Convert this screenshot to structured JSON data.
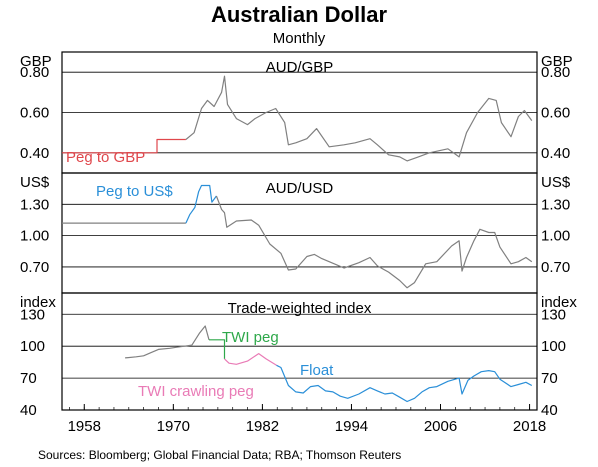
{
  "chart_data": {
    "type": "line",
    "title": "Australian Dollar",
    "subtitle": "Monthly",
    "source": "Sources:   Bloomberg; Global Financial Data; RBA; Thomson Reuters",
    "x_ticks": [
      "1958",
      "1970",
      "1982",
      "1994",
      "2006",
      "2018"
    ],
    "xlim": [
      1955,
      2019
    ],
    "colors": {
      "grey": "#808080",
      "red": "#e0474c",
      "blue": "#2a8fd8",
      "green": "#2ea84a",
      "pink": "#e97bb6",
      "navy": "#1b2a6b"
    },
    "panels": [
      {
        "name": "AUD/GBP",
        "unit": "GBP",
        "ylim": [
          0.3,
          0.9
        ],
        "yticks": [
          "0.40",
          "0.60",
          "0.80"
        ],
        "ytick_values": [
          0.4,
          0.6,
          0.8
        ],
        "series": [
          {
            "label": "Peg to GBP",
            "color": "red",
            "points": [
              [
                1955,
                0.4
              ],
              [
                1967.8,
                0.4
              ],
              [
                1967.8,
                0.466
              ],
              [
                1971.7,
                0.466
              ]
            ]
          },
          {
            "color": "grey",
            "points": [
              [
                1971.7,
                0.466
              ],
              [
                1972.8,
                0.5
              ],
              [
                1973.8,
                0.62
              ],
              [
                1974.6,
                0.66
              ],
              [
                1975.5,
                0.63
              ],
              [
                1976.5,
                0.7
              ],
              [
                1976.9,
                0.78
              ],
              [
                1977.3,
                0.64
              ],
              [
                1978.5,
                0.57
              ],
              [
                1980,
                0.54
              ],
              [
                1981,
                0.57
              ],
              [
                1982.5,
                0.6
              ],
              [
                1983.8,
                0.62
              ],
              [
                1985,
                0.55
              ],
              [
                1985.5,
                0.44
              ],
              [
                1986.5,
                0.45
              ],
              [
                1988,
                0.47
              ],
              [
                1989.3,
                0.52
              ],
              [
                1991,
                0.43
              ],
              [
                1993,
                0.44
              ],
              [
                1994.5,
                0.45
              ],
              [
                1996.5,
                0.47
              ],
              [
                1997.5,
                0.44
              ],
              [
                1999,
                0.39
              ],
              [
                2000.5,
                0.38
              ],
              [
                2001.5,
                0.36
              ],
              [
                2003,
                0.38
              ],
              [
                2004.5,
                0.4
              ],
              [
                2007,
                0.42
              ],
              [
                2008.5,
                0.38
              ],
              [
                2009.5,
                0.5
              ],
              [
                2011,
                0.6
              ],
              [
                2012.5,
                0.67
              ],
              [
                2013.5,
                0.66
              ],
              [
                2014.2,
                0.55
              ],
              [
                2015.5,
                0.48
              ],
              [
                2016.5,
                0.58
              ],
              [
                2017.3,
                0.61
              ],
              [
                2018.3,
                0.56
              ]
            ]
          }
        ]
      },
      {
        "name": "AUD/USD",
        "unit": "US$",
        "ylim": [
          0.45,
          1.6
        ],
        "yticks": [
          "0.70",
          "1.00",
          "1.30"
        ],
        "ytick_values": [
          0.7,
          1.0,
          1.3
        ],
        "series": [
          {
            "color": "grey",
            "points": [
              [
                1955,
                1.12
              ],
              [
                1958,
                1.12
              ],
              [
                1962,
                1.12
              ],
              [
                1966,
                1.12
              ],
              [
                1970,
                1.12
              ],
              [
                1971.7,
                1.12
              ]
            ]
          },
          {
            "label": "Peg to US$",
            "color": "blue",
            "points": [
              [
                1971.7,
                1.12
              ],
              [
                1972.2,
                1.2
              ],
              [
                1972.9,
                1.27
              ],
              [
                1973.4,
                1.42
              ],
              [
                1973.8,
                1.48
              ],
              [
                1974.9,
                1.48
              ],
              [
                1975.2,
                1.32
              ],
              [
                1975.8,
                1.38
              ]
            ]
          },
          {
            "color": "grey",
            "points": [
              [
                1975.8,
                1.38
              ],
              [
                1976.5,
                1.25
              ],
              [
                1976.9,
                1.22
              ],
              [
                1977.2,
                1.08
              ],
              [
                1978.5,
                1.14
              ],
              [
                1980.5,
                1.15
              ],
              [
                1981.5,
                1.1
              ],
              [
                1983,
                0.92
              ],
              [
                1984.5,
                0.83
              ],
              [
                1985.5,
                0.67
              ],
              [
                1986.5,
                0.68
              ],
              [
                1988,
                0.8
              ],
              [
                1989,
                0.82
              ],
              [
                1990,
                0.78
              ],
              [
                1992,
                0.72
              ],
              [
                1993,
                0.69
              ],
              [
                1995,
                0.74
              ],
              [
                1996.5,
                0.79
              ],
              [
                1997.5,
                0.71
              ],
              [
                1999,
                0.65
              ],
              [
                2000.5,
                0.57
              ],
              [
                2001.5,
                0.5
              ],
              [
                2002.5,
                0.55
              ],
              [
                2004,
                0.73
              ],
              [
                2005.5,
                0.75
              ],
              [
                2007.5,
                0.9
              ],
              [
                2008.5,
                0.95
              ],
              [
                2008.9,
                0.66
              ],
              [
                2009.5,
                0.79
              ],
              [
                2010.5,
                0.95
              ],
              [
                2011.3,
                1.06
              ],
              [
                2012.5,
                1.03
              ],
              [
                2013.3,
                1.03
              ],
              [
                2014,
                0.89
              ],
              [
                2015.5,
                0.73
              ],
              [
                2016.5,
                0.75
              ],
              [
                2017.5,
                0.79
              ],
              [
                2018.3,
                0.75
              ]
            ]
          }
        ]
      },
      {
        "name": "Trade-weighted index",
        "unit": "index",
        "ylim": [
          40,
          150
        ],
        "yticks": [
          "40",
          "70",
          "100",
          "130"
        ],
        "ytick_values": [
          40,
          70,
          100,
          130
        ],
        "series": [
          {
            "color": "grey",
            "points": [
              [
                1963.5,
                89
              ],
              [
                1965,
                90
              ],
              [
                1966,
                91
              ],
              [
                1967,
                94
              ],
              [
                1968,
                97
              ],
              [
                1969.5,
                98
              ],
              [
                1970.5,
                99
              ],
              [
                1971.5,
                100
              ],
              [
                1972.5,
                101
              ],
              [
                1973.5,
                112
              ],
              [
                1974.3,
                119
              ],
              [
                1974.8,
                106
              ]
            ]
          },
          {
            "label": "TWI peg",
            "color": "green",
            "points": [
              [
                1974.8,
                106
              ],
              [
                1976.9,
                106
              ],
              [
                1976.9,
                88
              ]
            ]
          },
          {
            "label": "TWI crawling peg",
            "color": "pink",
            "points": [
              [
                1976.9,
                88
              ],
              [
                1977.5,
                84
              ],
              [
                1978.5,
                83
              ],
              [
                1980,
                86
              ],
              [
                1981.5,
                93
              ],
              [
                1982.5,
                88
              ],
              [
                1983.9,
                82
              ]
            ]
          },
          {
            "label": "Float",
            "color": "blue",
            "points": [
              [
                1983.9,
                82
              ],
              [
                1984.5,
                80
              ],
              [
                1985.5,
                63
              ],
              [
                1986.5,
                57
              ],
              [
                1987.5,
                56
              ],
              [
                1988.5,
                62
              ],
              [
                1989.5,
                63
              ],
              [
                1990.5,
                58
              ],
              [
                1991.5,
                57
              ],
              [
                1992.5,
                53
              ],
              [
                1993.5,
                51
              ],
              [
                1995,
                55
              ],
              [
                1996.5,
                61
              ],
              [
                1997.5,
                58
              ],
              [
                1998.5,
                55
              ],
              [
                1999.5,
                56
              ],
              [
                2000.5,
                52
              ],
              [
                2001.5,
                48
              ],
              [
                2002.5,
                51
              ],
              [
                2003.5,
                57
              ],
              [
                2004.5,
                61
              ],
              [
                2005.5,
                62
              ],
              [
                2007,
                67
              ],
              [
                2008.5,
                70
              ],
              [
                2008.9,
                55
              ],
              [
                2009.7,
                68
              ],
              [
                2010.5,
                72
              ],
              [
                2011.5,
                76
              ],
              [
                2012.5,
                77
              ],
              [
                2013.3,
                76
              ],
              [
                2014,
                69
              ],
              [
                2015.5,
                62
              ],
              [
                2016.5,
                64
              ],
              [
                2017.5,
                66
              ],
              [
                2018.3,
                63
              ]
            ]
          }
        ]
      }
    ]
  }
}
